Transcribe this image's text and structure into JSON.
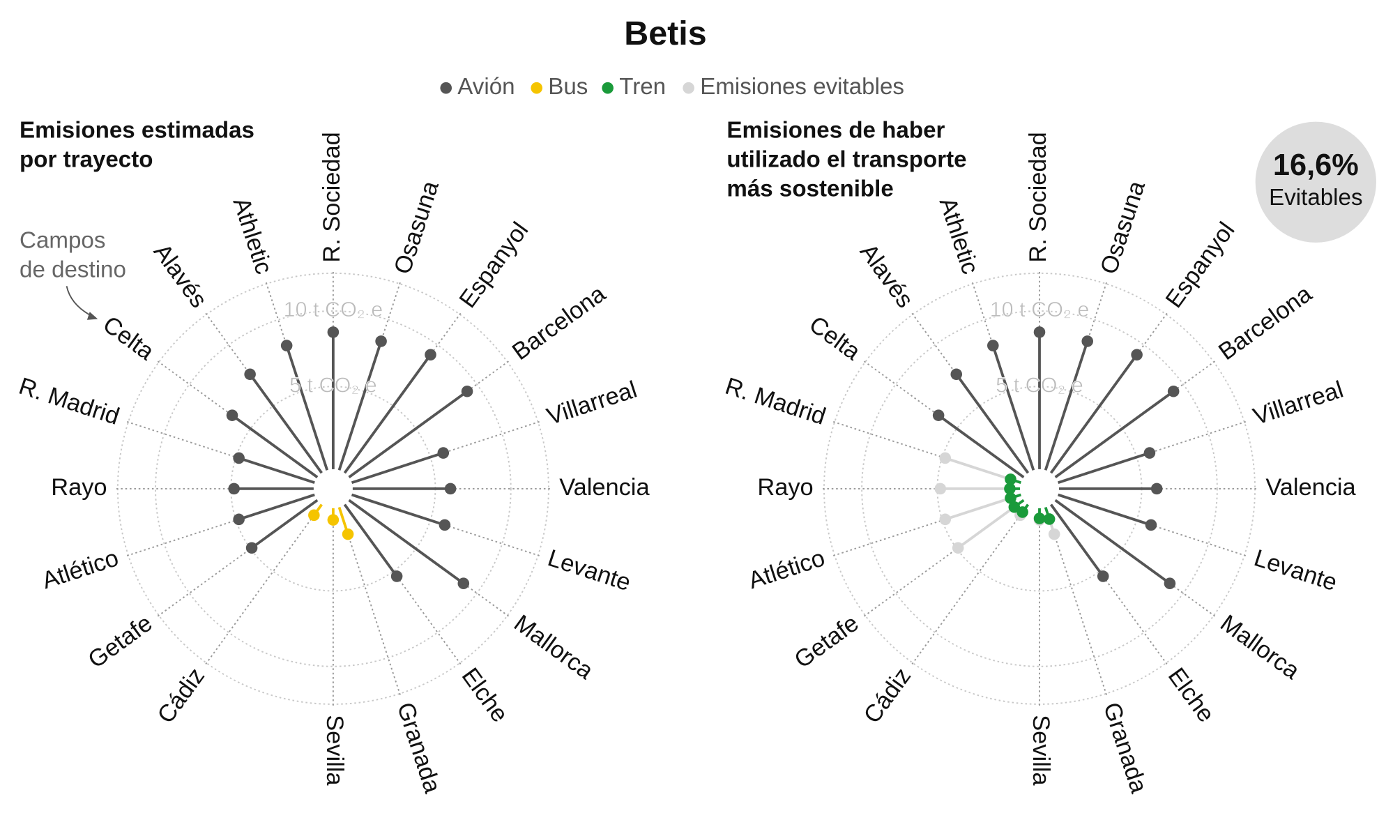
{
  "title": "Betis",
  "annotation": [
    "Campos",
    "de destino"
  ],
  "badge": {
    "value": 16.6,
    "label": "16,6%",
    "caption": "Evitables"
  },
  "chart_data": [
    {
      "type": "radial-lollipop",
      "subtitle": [
        "Emisiones estimadas",
        "por trayecto"
      ],
      "categories": [
        "R. Sociedad",
        "Osasuna",
        "Espanyol",
        "Barcelona",
        "Villarreal",
        "Valencia",
        "Levante",
        "Mallorca",
        "Elche",
        "Granada",
        "Sevilla",
        null,
        "Cádiz",
        "Getafe",
        "Atlético",
        "Rayo",
        "R. Madrid",
        "Celta",
        "Alavés",
        "Athletic"
      ],
      "ylim": [
        0,
        12.5
      ],
      "yticks": [
        {
          "value": 5,
          "label": "5 t CO₂ e"
        },
        {
          "value": 10,
          "label": "10 t CO₂ e"
        }
      ],
      "series": [
        {
          "name": "Avión",
          "color": "#555555",
          "values": [
            8.6,
            8.5,
            9.2,
            9.2,
            5.9,
            6.0,
            6.0,
            8.9,
            5.4,
            null,
            null,
            null,
            null,
            4.9,
            4.8,
            4.8,
            4.8,
            6.5,
            7.6,
            8.2
          ]
        },
        {
          "name": "Bus",
          "color": "#f5c400",
          "values": [
            null,
            null,
            null,
            null,
            null,
            null,
            null,
            null,
            null,
            1.4,
            0.3,
            null,
            0.4,
            null,
            null,
            null,
            null,
            null,
            null,
            null
          ]
        },
        {
          "name": "Tren",
          "color": "#1a9a3a",
          "values": [
            null,
            null,
            null,
            null,
            null,
            null,
            null,
            null,
            null,
            null,
            null,
            null,
            null,
            null,
            null,
            null,
            null,
            null,
            null,
            null
          ]
        },
        {
          "name": "Emisiones evitables",
          "color": "#d6d6d6",
          "values": [
            null,
            null,
            null,
            null,
            null,
            null,
            null,
            null,
            null,
            null,
            null,
            null,
            null,
            null,
            null,
            null,
            null,
            null,
            null,
            null
          ]
        }
      ]
    },
    {
      "type": "radial-lollipop",
      "subtitle": [
        "Emisiones de haber",
        "utilizado el transporte",
        "más sostenible"
      ],
      "categories": [
        "R. Sociedad",
        "Osasuna",
        "Espanyol",
        "Barcelona",
        "Villarreal",
        "Valencia",
        "Levante",
        "Mallorca",
        "Elche",
        "Granada",
        "Sevilla",
        null,
        "Cádiz",
        "Getafe",
        "Atlético",
        "Rayo",
        "R. Madrid",
        "Celta",
        "Alavés",
        "Athletic"
      ],
      "ylim": [
        0,
        12.5
      ],
      "yticks": [
        {
          "value": 5,
          "label": "5 t CO₂ e"
        },
        {
          "value": 10,
          "label": "10 t CO₂ e"
        }
      ],
      "series": [
        {
          "name": "Emisiones evitables",
          "color": "#d6d6d6",
          "values": [
            null,
            null,
            null,
            null,
            null,
            null,
            null,
            null,
            null,
            1.4,
            0.3,
            null,
            0.4,
            4.9,
            4.8,
            4.8,
            4.8,
            null,
            null,
            null
          ]
        },
        {
          "name": "Avión",
          "color": "#555555",
          "values": [
            8.6,
            8.5,
            9.2,
            9.2,
            5.9,
            6.0,
            6.0,
            8.9,
            5.4,
            null,
            null,
            null,
            null,
            null,
            null,
            null,
            null,
            6.5,
            7.6,
            8.2
          ]
        },
        {
          "name": "Tren",
          "color": "#1a9a3a",
          "values": [
            null,
            null,
            null,
            null,
            null,
            null,
            null,
            null,
            null,
            0.35,
            0.2,
            null,
            0.15,
            0.3,
            0.25,
            0.2,
            0.25,
            null,
            null,
            null
          ]
        }
      ]
    }
  ]
}
